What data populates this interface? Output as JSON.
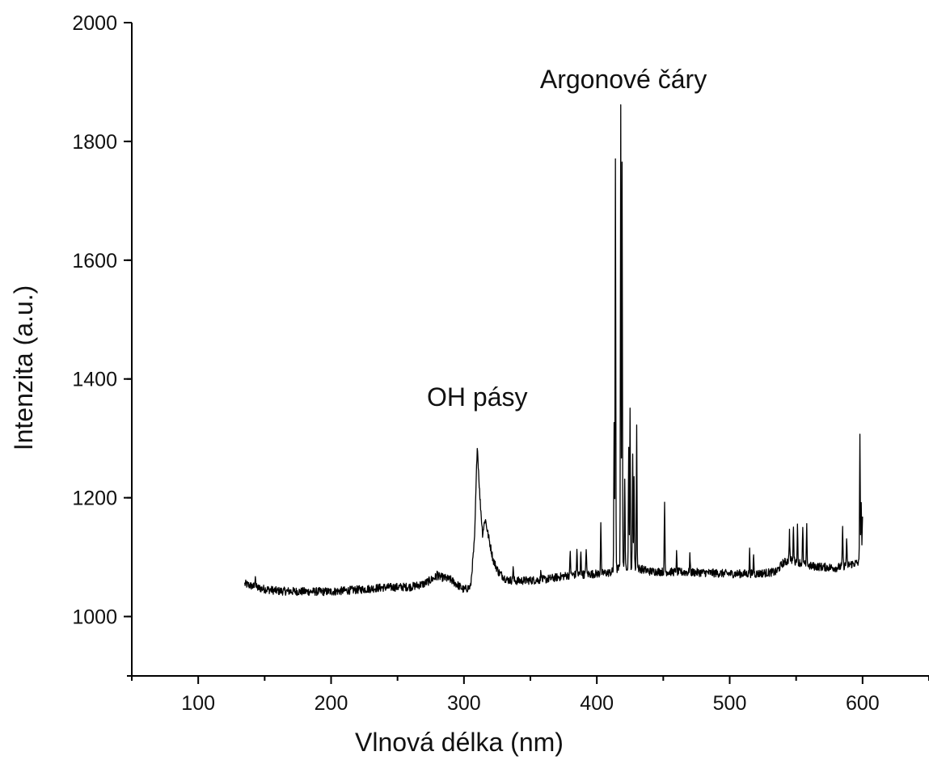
{
  "chart_data": {
    "type": "line",
    "title": "",
    "xlabel": "Vlnová délka (nm)",
    "ylabel": "Intenzita (a.u.)",
    "xlim": [
      50,
      650
    ],
    "ylim": [
      900,
      2000
    ],
    "x_ticks": [
      100,
      200,
      300,
      400,
      500,
      600
    ],
    "y_ticks": [
      1000,
      1200,
      1400,
      1600,
      1800,
      2000
    ],
    "grid": false,
    "legend": "none",
    "annotations": [
      {
        "text": "Argonové čáry",
        "x": 420,
        "y": 1890
      },
      {
        "text": "OH pásy",
        "x": 310,
        "y": 1355
      }
    ],
    "series": [
      {
        "color": "#000000",
        "baseline": [
          [
            135,
            1055
          ],
          [
            145,
            1048
          ],
          [
            160,
            1043
          ],
          [
            180,
            1042
          ],
          [
            200,
            1042
          ],
          [
            220,
            1045
          ],
          [
            240,
            1049
          ],
          [
            260,
            1050
          ],
          [
            270,
            1055
          ],
          [
            280,
            1068
          ],
          [
            290,
            1062
          ],
          [
            300,
            1045
          ],
          [
            305,
            1050
          ],
          [
            308,
            1130
          ],
          [
            310,
            1290
          ],
          [
            312,
            1200
          ],
          [
            314,
            1140
          ],
          [
            316,
            1165
          ],
          [
            318,
            1140
          ],
          [
            322,
            1095
          ],
          [
            326,
            1075
          ],
          [
            332,
            1062
          ],
          [
            340,
            1060
          ],
          [
            360,
            1062
          ],
          [
            380,
            1070
          ],
          [
            400,
            1072
          ],
          [
            410,
            1074
          ],
          [
            420,
            1085
          ],
          [
            430,
            1082
          ],
          [
            440,
            1076
          ],
          [
            460,
            1075
          ],
          [
            480,
            1074
          ],
          [
            500,
            1072
          ],
          [
            520,
            1072
          ],
          [
            535,
            1075
          ],
          [
            540,
            1090
          ],
          [
            545,
            1095
          ],
          [
            550,
            1093
          ],
          [
            560,
            1085
          ],
          [
            580,
            1082
          ],
          [
            595,
            1090
          ],
          [
            600,
            1090
          ]
        ],
        "peaks": [
          [
            143,
            1072
          ],
          [
            280,
            1075
          ],
          [
            337,
            1085
          ],
          [
            358,
            1080
          ],
          [
            380,
            1110
          ],
          [
            385,
            1115
          ],
          [
            388,
            1112
          ],
          [
            392,
            1118
          ],
          [
            403,
            1160
          ],
          [
            413,
            1320
          ],
          [
            414,
            1775
          ],
          [
            418,
            1855
          ],
          [
            419,
            1770
          ],
          [
            421,
            1235
          ],
          [
            424,
            1290
          ],
          [
            425,
            1345
          ],
          [
            427,
            1270
          ],
          [
            428,
            1235
          ],
          [
            430,
            1320
          ],
          [
            451,
            1190
          ],
          [
            460,
            1105
          ],
          [
            470,
            1105
          ],
          [
            515,
            1110
          ],
          [
            518,
            1105
          ],
          [
            545,
            1145
          ],
          [
            548,
            1155
          ],
          [
            551,
            1150
          ],
          [
            555,
            1148
          ],
          [
            558,
            1150
          ],
          [
            585,
            1150
          ],
          [
            588,
            1130
          ],
          [
            598,
            1310
          ],
          [
            599,
            1195
          ],
          [
            600,
            1175
          ]
        ]
      }
    ]
  }
}
